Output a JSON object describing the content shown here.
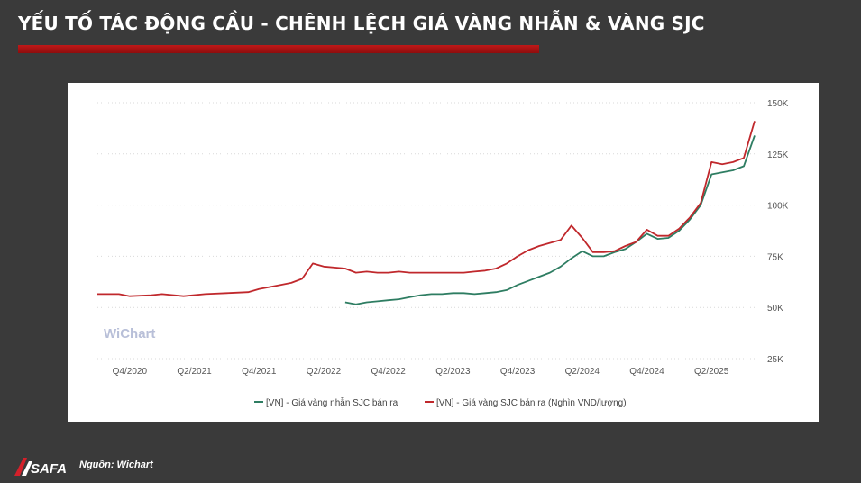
{
  "header": {
    "title": "YẾU TỐ TÁC ĐỘNG CẦU - CHÊNH LỆCH GIÁ VÀNG NHẪN & VÀNG SJC"
  },
  "footer": {
    "source": "Nguồn: Wichart",
    "logo_text": "SAFA"
  },
  "watermark": "WiChart",
  "colors": {
    "background": "#3a3a3a",
    "accent_bar": "#b01212",
    "ring_series": "#2e7d62",
    "sjc_series": "#c0282c"
  },
  "chart_data": {
    "type": "line",
    "title": "",
    "xlabel": "",
    "ylabel": "",
    "x_ticks": [
      "Q4/2020",
      "Q2/2021",
      "Q4/2021",
      "Q2/2022",
      "Q4/2022",
      "Q2/2023",
      "Q4/2023",
      "Q2/2024",
      "Q4/2024",
      "Q2/2025"
    ],
    "y_ticks": [
      "150K",
      "125K",
      "100K",
      "75K",
      "50K",
      "25K"
    ],
    "y_tick_values": [
      150000,
      125000,
      100000,
      75000,
      50000,
      25000
    ],
    "ylim": [
      25000,
      150000
    ],
    "x_range": [
      "2020-07",
      "2025-08"
    ],
    "grid": true,
    "legend": "bottom",
    "series": [
      {
        "name": "[VN] - Giá vàng nhẫn SJC bán ra",
        "color": "#2e7d62",
        "points": [
          [
            "2022-06",
            52500
          ],
          [
            "2022-07",
            51500
          ],
          [
            "2022-08",
            52500
          ],
          [
            "2022-09",
            53000
          ],
          [
            "2022-10",
            53500
          ],
          [
            "2022-11",
            54000
          ],
          [
            "2022-12",
            55000
          ],
          [
            "2023-01",
            56000
          ],
          [
            "2023-02",
            56500
          ],
          [
            "2023-03",
            56500
          ],
          [
            "2023-04",
            57000
          ],
          [
            "2023-05",
            57000
          ],
          [
            "2023-06",
            56500
          ],
          [
            "2023-07",
            57000
          ],
          [
            "2023-08",
            57500
          ],
          [
            "2023-09",
            58500
          ],
          [
            "2023-10",
            61000
          ],
          [
            "2023-11",
            63000
          ],
          [
            "2023-12",
            65000
          ],
          [
            "2024-01",
            67000
          ],
          [
            "2024-02",
            70000
          ],
          [
            "2024-03",
            74000
          ],
          [
            "2024-04",
            77500
          ],
          [
            "2024-05",
            75000
          ],
          [
            "2024-06",
            75000
          ],
          [
            "2024-07",
            77000
          ],
          [
            "2024-08",
            78500
          ],
          [
            "2024-09",
            82000
          ],
          [
            "2024-10",
            86000
          ],
          [
            "2024-11",
            83500
          ],
          [
            "2024-12",
            84000
          ],
          [
            "2025-01",
            87500
          ],
          [
            "2025-02",
            93000
          ],
          [
            "2025-03",
            100000
          ],
          [
            "2025-04",
            115000
          ],
          [
            "2025-05",
            116000
          ],
          [
            "2025-06",
            117000
          ],
          [
            "2025-07",
            119000
          ],
          [
            "2025-08",
            134000
          ]
        ]
      },
      {
        "name": "[VN] - Giá vàng SJC bán ra (Nghìn VND/lượng)",
        "color": "#c0282c",
        "points": [
          [
            "2020-07",
            56500
          ],
          [
            "2020-09",
            56500
          ],
          [
            "2020-10",
            55500
          ],
          [
            "2020-12",
            56000
          ],
          [
            "2021-01",
            56500
          ],
          [
            "2021-03",
            55500
          ],
          [
            "2021-05",
            56500
          ],
          [
            "2021-07",
            57000
          ],
          [
            "2021-09",
            57500
          ],
          [
            "2021-10",
            59000
          ],
          [
            "2021-12",
            61000
          ],
          [
            "2022-01",
            62000
          ],
          [
            "2022-02",
            64000
          ],
          [
            "2022-03",
            71500
          ],
          [
            "2022-04",
            70000
          ],
          [
            "2022-05",
            69500
          ],
          [
            "2022-06",
            69000
          ],
          [
            "2022-07",
            67000
          ],
          [
            "2022-08",
            67500
          ],
          [
            "2022-09",
            67000
          ],
          [
            "2022-10",
            67000
          ],
          [
            "2022-11",
            67500
          ],
          [
            "2022-12",
            67000
          ],
          [
            "2023-01",
            67000
          ],
          [
            "2023-02",
            67000
          ],
          [
            "2023-03",
            67000
          ],
          [
            "2023-04",
            67000
          ],
          [
            "2023-05",
            67000
          ],
          [
            "2023-06",
            67500
          ],
          [
            "2023-07",
            68000
          ],
          [
            "2023-08",
            69000
          ],
          [
            "2023-09",
            71500
          ],
          [
            "2023-10",
            75000
          ],
          [
            "2023-11",
            78000
          ],
          [
            "2023-12",
            80000
          ],
          [
            "2024-01",
            81500
          ],
          [
            "2024-02",
            83000
          ],
          [
            "2024-03",
            90000
          ],
          [
            "2024-04",
            84000
          ],
          [
            "2024-05",
            77000
          ],
          [
            "2024-06",
            77000
          ],
          [
            "2024-07",
            77500
          ],
          [
            "2024-08",
            80000
          ],
          [
            "2024-09",
            82000
          ],
          [
            "2024-10",
            88000
          ],
          [
            "2024-11",
            85000
          ],
          [
            "2024-12",
            85000
          ],
          [
            "2025-01",
            88500
          ],
          [
            "2025-02",
            94000
          ],
          [
            "2025-03",
            101000
          ],
          [
            "2025-04",
            121000
          ],
          [
            "2025-05",
            120000
          ],
          [
            "2025-06",
            121000
          ],
          [
            "2025-07",
            123000
          ],
          [
            "2025-08",
            141000
          ]
        ]
      }
    ]
  }
}
